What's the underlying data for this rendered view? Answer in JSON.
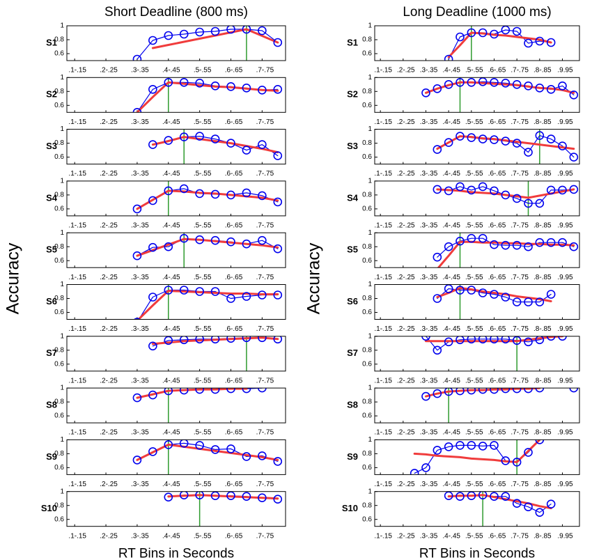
{
  "chart_data": [
    {
      "type": "line",
      "title": "Short Deadline (800 ms)",
      "y_label": "Accuracy",
      "x_label": "RT Bins in Seconds",
      "categories": [
        ".1-.15",
        null,
        ".2-.25",
        null,
        ".3-.35",
        null,
        ".4-.45",
        null,
        ".5-.55",
        null,
        ".6-.65",
        null,
        ".7-.75",
        null
      ],
      "ylim": [
        0.5,
        1
      ],
      "yticks": [
        0.6,
        0.8,
        1
      ],
      "color": "#0000ee",
      "fit_color": "#f03c3c",
      "breakpoint_color": "#2e9b2e",
      "panels": [
        {
          "name": "S1",
          "values": [
            null,
            null,
            null,
            null,
            0.52,
            0.79,
            0.86,
            0.88,
            0.91,
            0.92,
            0.95,
            0.95,
            0.93,
            0.76
          ],
          "fit": [
            null,
            null,
            null,
            null,
            null,
            0.68,
            0.725,
            0.77,
            0.815,
            0.86,
            0.905,
            0.95,
            0.855,
            0.76
          ],
          "breakpoint": 11
        },
        {
          "name": "S2",
          "values": [
            null,
            null,
            null,
            null,
            0.5,
            0.83,
            0.93,
            0.93,
            0.92,
            0.88,
            0.87,
            0.85,
            0.82,
            0.83
          ],
          "fit": [
            null,
            null,
            null,
            null,
            0.5,
            0.72,
            0.93,
            0.91,
            0.89,
            0.87,
            0.86,
            0.84,
            0.82,
            0.81
          ],
          "breakpoint": 6
        },
        {
          "name": "S3",
          "values": [
            null,
            null,
            null,
            null,
            null,
            0.78,
            0.84,
            0.89,
            0.9,
            0.86,
            0.8,
            0.7,
            0.78,
            0.62
          ],
          "fit": [
            null,
            null,
            null,
            null,
            null,
            0.78,
            0.83,
            0.89,
            0.86,
            0.83,
            0.8,
            0.76,
            0.72,
            0.67
          ],
          "breakpoint": 7
        },
        {
          "name": "S4",
          "values": [
            null,
            null,
            null,
            null,
            0.6,
            0.72,
            0.86,
            0.89,
            0.82,
            0.81,
            0.8,
            0.83,
            0.79,
            0.7
          ],
          "fit": [
            null,
            null,
            null,
            null,
            0.6,
            0.73,
            0.86,
            0.85,
            0.83,
            0.82,
            0.8,
            0.78,
            0.76,
            0.72
          ],
          "breakpoint": 6
        },
        {
          "name": "S5",
          "values": [
            null,
            null,
            null,
            null,
            0.67,
            0.79,
            0.8,
            0.92,
            0.9,
            0.89,
            0.87,
            0.84,
            0.89,
            0.77
          ],
          "fit": [
            null,
            null,
            null,
            null,
            0.67,
            0.75,
            0.83,
            0.91,
            0.9,
            0.88,
            0.86,
            0.84,
            0.82,
            0.79
          ],
          "breakpoint": 7
        },
        {
          "name": "S6",
          "values": [
            null,
            null,
            null,
            null,
            0.46,
            0.82,
            0.92,
            0.92,
            0.9,
            0.9,
            0.8,
            0.83,
            0.85,
            0.85
          ],
          "fit": [
            null,
            null,
            null,
            null,
            0.48,
            0.7,
            0.91,
            0.9,
            0.89,
            0.88,
            0.87,
            0.87,
            0.86,
            0.86
          ],
          "breakpoint": 6
        },
        {
          "name": "S7",
          "values": [
            null,
            null,
            null,
            null,
            null,
            0.86,
            0.94,
            0.95,
            0.96,
            0.96,
            0.97,
            0.98,
            0.98,
            0.96
          ],
          "fit": [
            null,
            null,
            null,
            null,
            null,
            0.89,
            0.91,
            0.93,
            0.94,
            0.95,
            0.96,
            0.97,
            0.98,
            0.96
          ],
          "breakpoint": 11
        },
        {
          "name": "S8",
          "values": [
            null,
            null,
            null,
            null,
            0.86,
            0.9,
            0.96,
            0.97,
            0.98,
            0.98,
            0.99,
            0.99,
            1.0,
            null
          ],
          "fit": [
            null,
            null,
            null,
            null,
            0.86,
            0.91,
            0.96,
            0.97,
            0.98,
            0.98,
            0.99,
            0.99,
            null,
            null
          ],
          "breakpoint": 6
        },
        {
          "name": "S9",
          "values": [
            null,
            null,
            null,
            null,
            0.71,
            0.83,
            0.93,
            0.95,
            0.92,
            0.86,
            0.87,
            0.76,
            0.77,
            0.69
          ],
          "fit": [
            null,
            null,
            null,
            null,
            0.71,
            0.82,
            0.93,
            0.9,
            0.87,
            0.84,
            0.81,
            0.78,
            0.75,
            0.71
          ],
          "breakpoint": 6
        },
        {
          "name": "S10",
          "values": [
            null,
            null,
            null,
            null,
            null,
            null,
            0.92,
            0.95,
            0.95,
            0.94,
            0.94,
            0.93,
            0.91,
            0.89
          ],
          "fit": [
            null,
            null,
            null,
            null,
            null,
            null,
            0.93,
            0.94,
            0.95,
            0.94,
            0.93,
            0.92,
            0.91,
            0.9
          ],
          "breakpoint": 8
        }
      ]
    },
    {
      "type": "line",
      "title": "Long Deadline (1000 ms)",
      "y_label": "Accuracy",
      "x_label": "RT Bins in Seconds",
      "categories": [
        ".1-.15",
        null,
        ".2-.25",
        null,
        ".3-.35",
        null,
        ".4-.45",
        null,
        ".5-.55",
        null,
        ".6-.65",
        null,
        ".7-.75",
        null,
        ".8-.85",
        null,
        ".9.95",
        null
      ],
      "ylim": [
        0.5,
        1
      ],
      "yticks": [
        0.6,
        0.8,
        1
      ],
      "color": "#0000ee",
      "fit_color": "#f03c3c",
      "breakpoint_color": "#2e9b2e",
      "panels": [
        {
          "name": "S1",
          "values": [
            null,
            null,
            null,
            null,
            null,
            null,
            0.52,
            0.84,
            0.9,
            0.9,
            0.88,
            0.94,
            0.92,
            0.75,
            0.78,
            0.76,
            null,
            null
          ],
          "fit": [
            null,
            null,
            null,
            null,
            null,
            null,
            0.55,
            0.72,
            0.9,
            0.89,
            0.87,
            0.86,
            0.84,
            0.82,
            0.8,
            0.76,
            null,
            null
          ],
          "breakpoint": 8
        },
        {
          "name": "S2",
          "values": [
            null,
            null,
            null,
            null,
            0.78,
            0.84,
            0.9,
            0.93,
            0.93,
            0.94,
            0.93,
            0.92,
            0.9,
            0.88,
            0.85,
            0.83,
            0.88,
            0.75
          ],
          "fit": [
            null,
            null,
            null,
            null,
            0.78,
            0.84,
            0.89,
            0.93,
            0.93,
            0.92,
            0.91,
            0.9,
            0.89,
            0.87,
            0.85,
            0.84,
            0.82,
            0.78
          ],
          "breakpoint": 7
        },
        {
          "name": "S3",
          "values": [
            null,
            null,
            null,
            null,
            null,
            0.71,
            0.81,
            0.9,
            0.88,
            0.86,
            0.85,
            0.83,
            0.8,
            0.67,
            0.91,
            0.86,
            0.76,
            0.6
          ],
          "fit": [
            null,
            null,
            null,
            null,
            null,
            0.72,
            0.81,
            0.9,
            0.89,
            0.87,
            0.86,
            0.84,
            0.82,
            0.8,
            0.78,
            0.76,
            0.74,
            0.72
          ],
          "breakpoint": 14
        },
        {
          "name": "S4",
          "values": [
            null,
            null,
            null,
            null,
            null,
            0.88,
            0.86,
            0.92,
            0.87,
            0.92,
            0.86,
            0.8,
            0.75,
            0.68,
            0.68,
            0.87,
            0.87,
            0.88
          ],
          "fit": [
            null,
            null,
            null,
            null,
            null,
            0.88,
            0.87,
            0.86,
            0.84,
            0.83,
            0.82,
            0.8,
            0.78,
            0.76,
            0.79,
            0.82,
            0.85,
            0.88
          ],
          "breakpoint": 13
        },
        {
          "name": "S5",
          "values": [
            null,
            null,
            null,
            null,
            null,
            0.65,
            0.8,
            0.88,
            0.92,
            0.92,
            0.83,
            0.82,
            0.82,
            0.8,
            0.86,
            0.86,
            0.86,
            0.8
          ],
          "fit": [
            null,
            null,
            null,
            null,
            null,
            0.48,
            0.67,
            0.87,
            0.87,
            0.86,
            0.86,
            0.85,
            0.85,
            0.84,
            0.84,
            0.83,
            0.83,
            0.82
          ],
          "breakpoint": 7
        },
        {
          "name": "S6",
          "values": [
            null,
            null,
            null,
            null,
            null,
            0.8,
            0.94,
            0.92,
            0.92,
            0.88,
            0.86,
            0.82,
            0.75,
            0.75,
            0.75,
            0.86,
            null,
            null
          ],
          "fit": [
            null,
            null,
            null,
            null,
            null,
            0.82,
            0.88,
            0.95,
            0.93,
            0.9,
            0.88,
            0.86,
            0.83,
            0.81,
            0.79,
            0.76,
            null,
            null
          ],
          "breakpoint": 7
        },
        {
          "name": "S7",
          "values": [
            null,
            null,
            null,
            null,
            1.0,
            0.8,
            0.92,
            0.95,
            0.96,
            0.96,
            0.96,
            0.96,
            0.94,
            0.92,
            0.95,
            1.0,
            1.0,
            null
          ],
          "fit": [
            null,
            null,
            null,
            null,
            0.93,
            0.93,
            0.93,
            0.93,
            0.93,
            0.93,
            0.93,
            0.93,
            0.93,
            0.95,
            0.97,
            0.99,
            1.0,
            null
          ],
          "breakpoint": 12
        },
        {
          "name": "S8",
          "values": [
            null,
            null,
            null,
            null,
            0.88,
            0.92,
            0.95,
            0.96,
            0.97,
            0.98,
            0.98,
            0.99,
            0.99,
            0.99,
            1.0,
            null,
            null,
            1.0
          ],
          "fit": [
            null,
            null,
            null,
            null,
            0.88,
            0.92,
            0.95,
            0.96,
            0.97,
            0.97,
            0.98,
            0.98,
            0.99,
            0.99,
            1.0,
            null,
            null,
            null
          ],
          "breakpoint": 6
        },
        {
          "name": "S9",
          "values": [
            null,
            null,
            null,
            0.52,
            0.6,
            0.85,
            0.9,
            0.92,
            0.92,
            0.91,
            0.92,
            0.7,
            0.68,
            0.82,
            1.0,
            null,
            null,
            null
          ],
          "fit": [
            null,
            null,
            null,
            0.8,
            0.79,
            0.77,
            0.76,
            0.75,
            0.73,
            0.72,
            0.71,
            0.69,
            0.68,
            0.84,
            1.0,
            null,
            null,
            null
          ],
          "breakpoint": 12
        },
        {
          "name": "S10",
          "values": [
            null,
            null,
            null,
            null,
            null,
            null,
            0.94,
            0.93,
            0.94,
            0.95,
            0.93,
            0.93,
            0.83,
            0.78,
            0.7,
            0.82,
            null,
            null
          ],
          "fit": [
            null,
            null,
            null,
            null,
            null,
            null,
            0.93,
            0.94,
            0.94,
            0.95,
            0.92,
            0.89,
            0.86,
            0.83,
            0.79,
            0.76,
            null,
            null
          ],
          "breakpoint": 9
        }
      ]
    }
  ]
}
